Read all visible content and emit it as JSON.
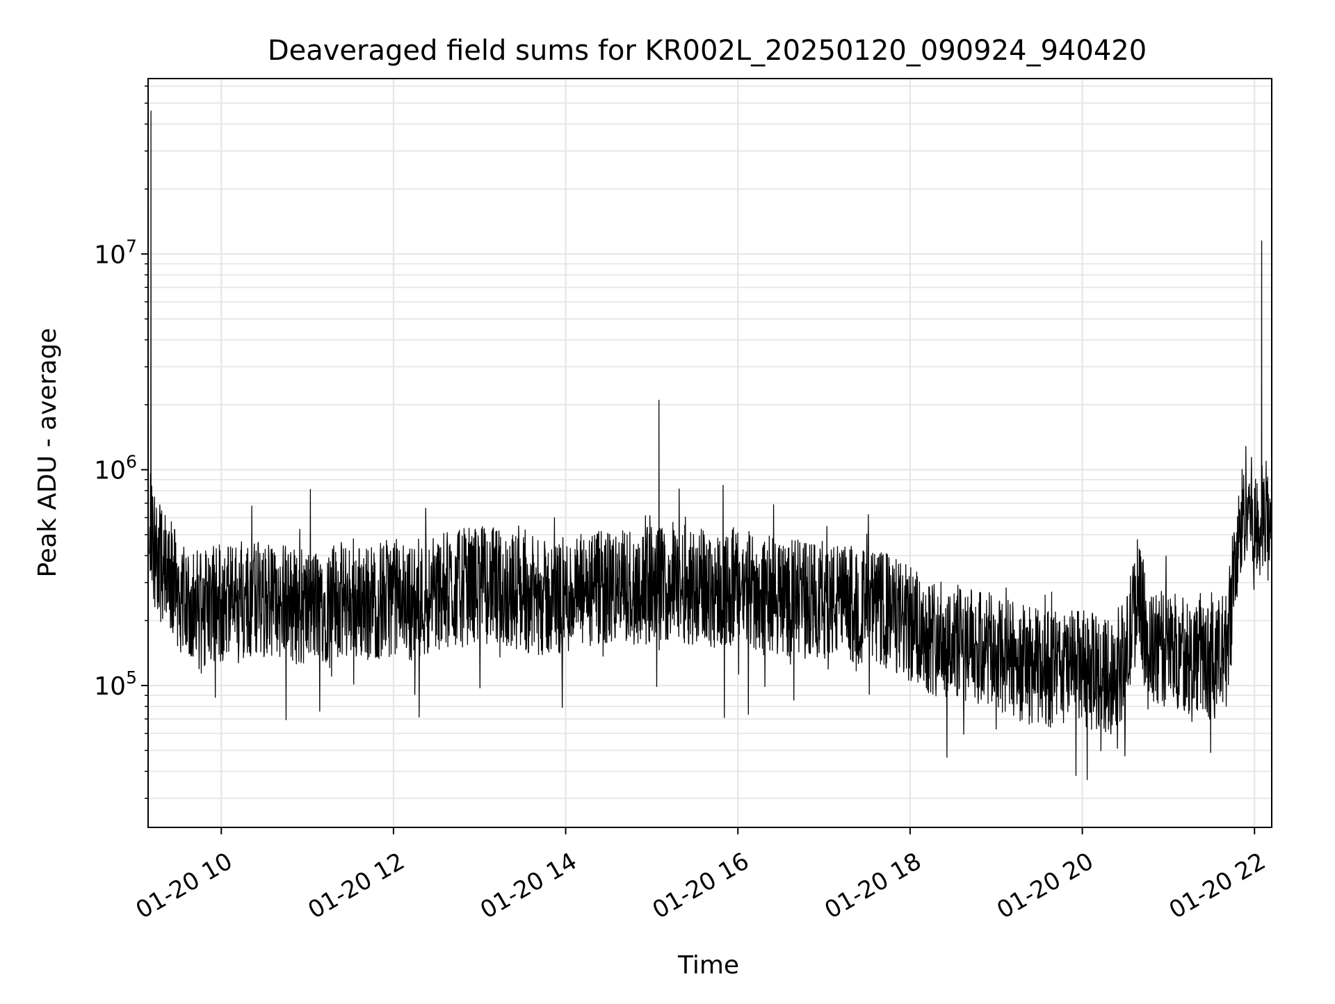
{
  "chart_data": {
    "type": "line",
    "title": "Deaveraged field sums for KR002L_20250120_090924_940420",
    "xlabel": "Time",
    "ylabel": "Peak ADU - average",
    "xlim": [
      "2025-01-20 09:09",
      "2025-01-20 22:12"
    ],
    "ylim": [
      22000,
      65000000
    ],
    "yscale": "log",
    "grid": true,
    "xticks": [
      {
        "t": "2025-01-20 10:00",
        "label": "01-20 10"
      },
      {
        "t": "2025-01-20 12:00",
        "label": "01-20 12"
      },
      {
        "t": "2025-01-20 14:00",
        "label": "01-20 14"
      },
      {
        "t": "2025-01-20 16:00",
        "label": "01-20 16"
      },
      {
        "t": "2025-01-20 18:00",
        "label": "01-20 18"
      },
      {
        "t": "2025-01-20 20:00",
        "label": "01-20 20"
      },
      {
        "t": "2025-01-20 22:00",
        "label": "01-20 22"
      }
    ],
    "yticks": [
      {
        "value": 100000,
        "base": "10",
        "exp": "5"
      },
      {
        "value": 1000000,
        "base": "10",
        "exp": "6"
      },
      {
        "value": 10000000,
        "base": "10",
        "exp": "7"
      }
    ],
    "series": [
      {
        "color": "#000000",
        "x": [
          "2025-01-20 09:10",
          "2025-01-20 09:11",
          "2025-01-20 09:15",
          "2025-01-20 09:20",
          "2025-01-20 09:30",
          "2025-01-20 09:40",
          "2025-01-20 09:50",
          "2025-01-20 10:00",
          "2025-01-20 10:15",
          "2025-01-20 10:30",
          "2025-01-20 10:45",
          "2025-01-20 11:00",
          "2025-01-20 11:15",
          "2025-01-20 11:30",
          "2025-01-20 11:45",
          "2025-01-20 12:00",
          "2025-01-20 12:15",
          "2025-01-20 12:30",
          "2025-01-20 12:45",
          "2025-01-20 13:00",
          "2025-01-20 13:15",
          "2025-01-20 13:30",
          "2025-01-20 13:45",
          "2025-01-20 14:00",
          "2025-01-20 14:15",
          "2025-01-20 14:30",
          "2025-01-20 14:45",
          "2025-01-20 15:00",
          "2025-01-20 15:05",
          "2025-01-20 15:15",
          "2025-01-20 15:30",
          "2025-01-20 15:45",
          "2025-01-20 16:00",
          "2025-01-20 16:15",
          "2025-01-20 16:30",
          "2025-01-20 16:45",
          "2025-01-20 17:00",
          "2025-01-20 17:15",
          "2025-01-20 17:30",
          "2025-01-20 17:45",
          "2025-01-20 18:00",
          "2025-01-20 18:15",
          "2025-01-20 18:30",
          "2025-01-20 18:45",
          "2025-01-20 19:00",
          "2025-01-20 19:15",
          "2025-01-20 19:30",
          "2025-01-20 19:45",
          "2025-01-20 20:00",
          "2025-01-20 20:15",
          "2025-01-20 20:30",
          "2025-01-20 20:40",
          "2025-01-20 20:45",
          "2025-01-20 21:00",
          "2025-01-20 21:15",
          "2025-01-20 21:30",
          "2025-01-20 21:40",
          "2025-01-20 21:45",
          "2025-01-20 21:50",
          "2025-01-20 21:55",
          "2025-01-20 22:00",
          "2025-01-20 22:05",
          "2025-01-20 22:08",
          "2025-01-20 22:12"
        ],
        "y": [
          500000,
          46000000,
          400000,
          350000,
          270000,
          240000,
          230000,
          240000,
          250000,
          250000,
          240000,
          230000,
          240000,
          250000,
          240000,
          260000,
          240000,
          270000,
          280000,
          300000,
          280000,
          270000,
          250000,
          260000,
          270000,
          280000,
          290000,
          290000,
          2100000,
          300000,
          290000,
          280000,
          280000,
          270000,
          260000,
          250000,
          250000,
          240000,
          230000,
          220000,
          190000,
          170000,
          160000,
          150000,
          140000,
          130000,
          120000,
          120000,
          120000,
          110000,
          130000,
          300000,
          140000,
          150000,
          140000,
          130000,
          140000,
          300000,
          500000,
          800000,
          500000,
          11500000,
          600000,
          500000
        ]
      }
    ]
  }
}
